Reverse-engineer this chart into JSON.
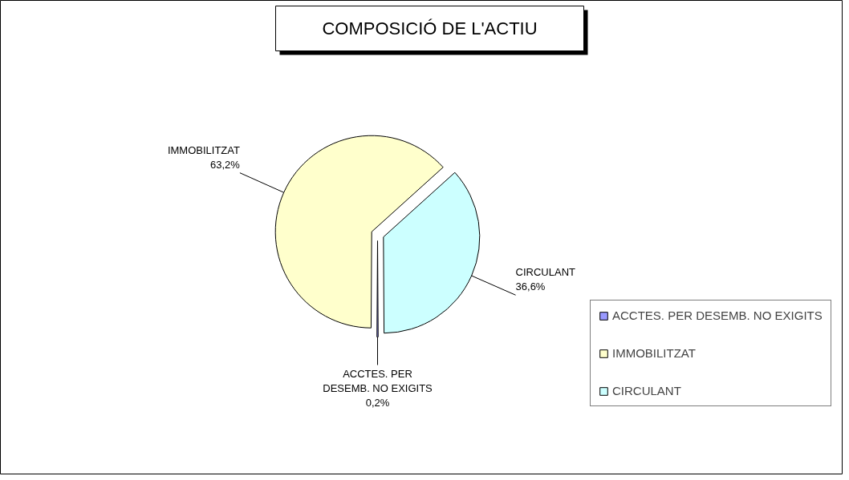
{
  "chart_data": {
    "type": "pie",
    "title": "COMPOSICIÓ DE L'ACTIU",
    "categories": [
      "ACCTES. PER DESEMB. NO EXIGITS",
      "IMMOBILITZAT",
      "CIRCULANT"
    ],
    "values": [
      0.2,
      63.2,
      36.6
    ],
    "colors": [
      "#9999ff",
      "#ffffcc",
      "#ccffff"
    ],
    "value_labels": [
      "0,2%",
      "63,2%",
      "36,6%"
    ],
    "legend": "right"
  }
}
